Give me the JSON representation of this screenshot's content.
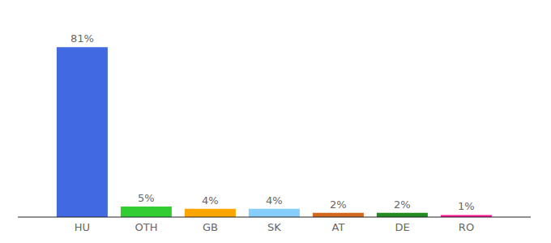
{
  "chart_data": {
    "type": "bar",
    "categories": [
      "HU",
      "OTH",
      "GB",
      "SK",
      "AT",
      "DE",
      "RO"
    ],
    "values": [
      81,
      5,
      4,
      4,
      2,
      2,
      1
    ],
    "value_labels": [
      "81%",
      "5%",
      "4%",
      "4%",
      "2%",
      "2%",
      "1%"
    ],
    "colors": [
      "#4169e1",
      "#32cd32",
      "#ffa500",
      "#87cefa",
      "#d2691e",
      "#228b22",
      "#ff1493"
    ],
    "ylim": [
      0,
      90
    ],
    "data_labels": true,
    "tick_labels": "x",
    "grid": false
  }
}
